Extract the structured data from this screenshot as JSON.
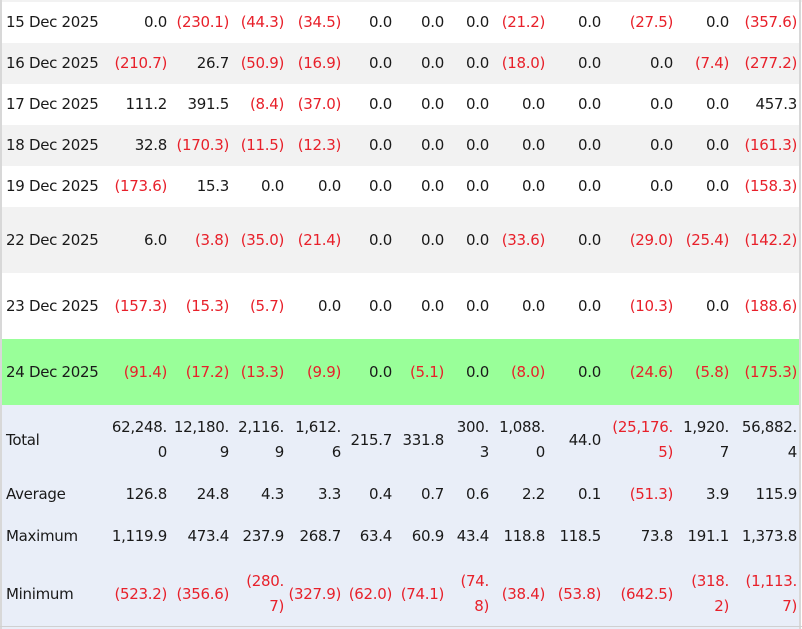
{
  "table": {
    "rows": [
      {
        "date": "15 Dec 2025",
        "style": "white",
        "values": [
          "0.0",
          "(230.1)",
          "(44.3)",
          "(34.5)",
          "0.0",
          "0.0",
          "0.0",
          "(21.2)",
          "0.0",
          "(27.5)",
          "0.0",
          "(357.6)"
        ]
      },
      {
        "date": "16 Dec 2025",
        "style": "grey",
        "values": [
          "(210.7)",
          "26.7",
          "(50.9)",
          "(16.9)",
          "0.0",
          "0.0",
          "0.0",
          "(18.0)",
          "0.0",
          "0.0",
          "(7.4)",
          "(277.2)"
        ]
      },
      {
        "date": "17 Dec 2025",
        "style": "white",
        "values": [
          "111.2",
          "391.5",
          "(8.4)",
          "(37.0)",
          "0.0",
          "0.0",
          "0.0",
          "0.0",
          "0.0",
          "0.0",
          "0.0",
          "457.3"
        ]
      },
      {
        "date": "18 Dec 2025",
        "style": "grey",
        "values": [
          "32.8",
          "(170.3)",
          "(11.5)",
          "(12.3)",
          "0.0",
          "0.0",
          "0.0",
          "0.0",
          "0.0",
          "0.0",
          "0.0",
          "(161.3)"
        ]
      },
      {
        "date": "19 Dec 2025",
        "style": "white",
        "values": [
          "(173.6)",
          "15.3",
          "0.0",
          "0.0",
          "0.0",
          "0.0",
          "0.0",
          "0.0",
          "0.0",
          "0.0",
          "0.0",
          "(158.3)"
        ]
      },
      {
        "date": "22 Dec 2025",
        "style": "grey",
        "values": [
          "6.0",
          "(3.8)",
          "(35.0)",
          "(21.4)",
          "0.0",
          "0.0",
          "0.0",
          "(33.6)",
          "0.0",
          "(29.0)",
          "(25.4)",
          "(142.2)"
        ]
      },
      {
        "date": "23 Dec 2025",
        "style": "white",
        "values": [
          "(157.3)",
          "(15.3)",
          "(5.7)",
          "0.0",
          "0.0",
          "0.0",
          "0.0",
          "0.0",
          "0.0",
          "(10.3)",
          "0.0",
          "(188.6)"
        ]
      },
      {
        "date": "24 Dec 2025",
        "style": "green",
        "values": [
          "(91.4)",
          "(17.2)",
          "(13.3)",
          "(9.9)",
          "0.0",
          "(5.1)",
          "0.0",
          "(8.0)",
          "0.0",
          "(24.6)",
          "(5.8)",
          "(175.3)"
        ]
      }
    ],
    "summary": [
      {
        "label": "Total",
        "values": [
          "62,248.0",
          "12,180.9",
          "2,116.9",
          "1,612.6",
          "215.7",
          "331.8",
          "300.3",
          "1,088.0",
          "44.0",
          "(25,176.5)",
          "1,920.7",
          "56,882.4"
        ]
      },
      {
        "label": "Average",
        "values": [
          "126.8",
          "24.8",
          "4.3",
          "3.3",
          "0.4",
          "0.7",
          "0.6",
          "2.2",
          "0.1",
          "(51.3)",
          "3.9",
          "115.9"
        ]
      },
      {
        "label": "Maximum",
        "values": [
          "1,119.9",
          "473.4",
          "237.9",
          "268.7",
          "63.4",
          "60.9",
          "43.4",
          "118.8",
          "118.5",
          "73.8",
          "191.1",
          "1,373.8"
        ]
      },
      {
        "label": "Minimum",
        "values": [
          "(523.2)",
          "(356.6)",
          "(280.7)",
          "(327.9)",
          "(62.0)",
          "(74.1)",
          "(74.8)",
          "(38.4)",
          "(53.8)",
          "(642.5)",
          "(318.2)",
          "(1,113.7)"
        ]
      }
    ]
  },
  "colors": {
    "negative": "#e8202a",
    "highlight_row": "#99ff99",
    "alt_row": "#f2f2f2",
    "summary_bg": "#e9eef8"
  }
}
